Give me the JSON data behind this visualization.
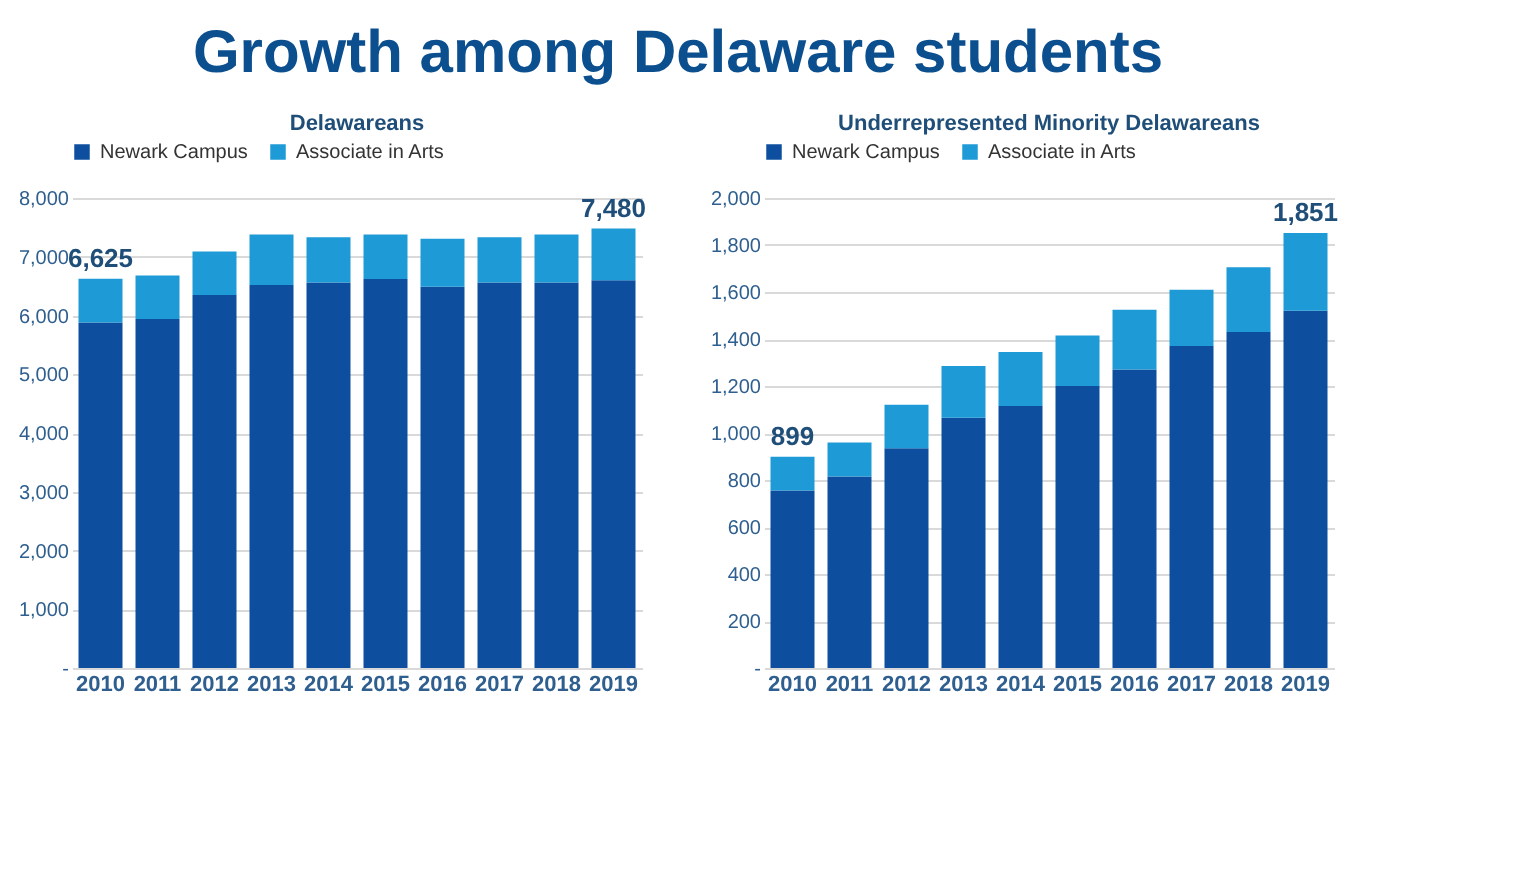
{
  "chart_data": [
    {
      "type": "bar",
      "stacked": true,
      "title": "Delawareans",
      "annotations": [
        "Growth among Delaware students",
        {
          "text": "6,625",
          "x": "2010",
          "y": 6625
        },
        {
          "text": "7,480",
          "x": "2019",
          "y": 7480
        }
      ],
      "categories": [
        "2010",
        "2011",
        "2012",
        "2013",
        "2014",
        "2015",
        "2016",
        "2017",
        "2018",
        "2019"
      ],
      "series": [
        {
          "name": "Newark Campus",
          "color": "#0d4f9e",
          "values": [
            5880,
            5940,
            6350,
            6520,
            6560,
            6620,
            6490,
            6560,
            6560,
            6600
          ]
        },
        {
          "name": "Associate in Arts",
          "color": "#1e9ad6",
          "values": [
            745,
            740,
            740,
            860,
            770,
            760,
            815,
            770,
            820,
            880
          ]
        }
      ],
      "ylim": [
        0,
        8000
      ],
      "yticks": [
        {
          "value": 0,
          "label": "-"
        },
        {
          "value": 1000,
          "label": "1,000"
        },
        {
          "value": 2000,
          "label": "2,000"
        },
        {
          "value": 3000,
          "label": "3,000"
        },
        {
          "value": 4000,
          "label": "4,000"
        },
        {
          "value": 5000,
          "label": "5,000"
        },
        {
          "value": 6000,
          "label": "6,000"
        },
        {
          "value": 7000,
          "label": "7,000"
        },
        {
          "value": 8000,
          "label": "8,000"
        }
      ],
      "grid": "y",
      "legend": "top"
    },
    {
      "type": "bar",
      "stacked": true,
      "title": "Underrepresented Minority Delawareans",
      "annotations": [
        {
          "text": "899",
          "x": "2010",
          "y": 899
        },
        {
          "text": "1,851",
          "x": "2019",
          "y": 1851
        }
      ],
      "categories": [
        "2010",
        "2011",
        "2012",
        "2013",
        "2014",
        "2015",
        "2016",
        "2017",
        "2018",
        "2019"
      ],
      "series": [
        {
          "name": "Newark Campus",
          "color": "#0d4f9e",
          "values": [
            755,
            815,
            935,
            1065,
            1115,
            1200,
            1270,
            1370,
            1430,
            1520
          ]
        },
        {
          "name": "Associate in Arts",
          "color": "#1e9ad6",
          "values": [
            144,
            145,
            185,
            220,
            230,
            215,
            255,
            240,
            275,
            331
          ]
        }
      ],
      "ylim": [
        0,
        2000
      ],
      "yticks": [
        {
          "value": 0,
          "label": "-"
        },
        200,
        400,
        600,
        800,
        {
          "value": 1000,
          "label": "1,000"
        },
        {
          "value": 1200,
          "label": "1,200"
        },
        {
          "value": 1400,
          "label": "1,400"
        },
        {
          "value": 1600,
          "label": "1,600"
        },
        {
          "value": 1800,
          "label": "1,800"
        },
        {
          "value": 2000,
          "label": "2,000"
        }
      ],
      "grid": "y",
      "legend": "top"
    }
  ]
}
